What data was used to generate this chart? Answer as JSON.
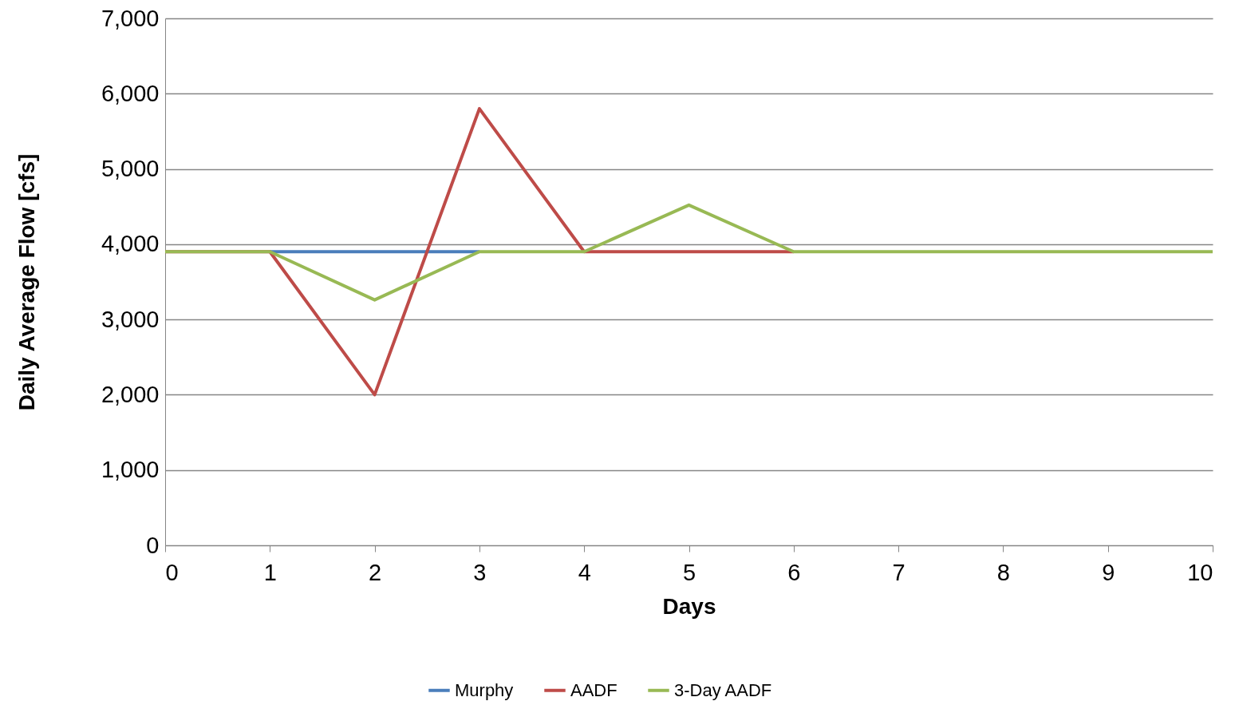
{
  "chart_data": {
    "type": "line",
    "xlabel": "Days",
    "ylabel": "Daily Average Flow [cfs]",
    "x": [
      0,
      1,
      2,
      3,
      4,
      5,
      6,
      7,
      8,
      9,
      10
    ],
    "series": [
      {
        "name": "Murphy",
        "color": "#4a7ebb",
        "values": [
          null,
          3900,
          3900,
          3900,
          null,
          null,
          null,
          null,
          null,
          null,
          null
        ]
      },
      {
        "name": "AADF",
        "color": "#be4b48",
        "values": [
          3900,
          3900,
          2000,
          5800,
          3900,
          3900,
          3900,
          null,
          null,
          null,
          null
        ]
      },
      {
        "name": "3-Day AADF",
        "color": "#98b954",
        "values": [
          3900,
          3900,
          3260,
          3900,
          3900,
          4520,
          3900,
          3900,
          3900,
          3900,
          3900
        ]
      }
    ],
    "xlim": [
      0,
      10
    ],
    "xticks": [
      0,
      1,
      2,
      3,
      4,
      5,
      6,
      7,
      8,
      9,
      10
    ],
    "ylim": [
      0,
      7000
    ],
    "yticks": [
      0,
      {
        "value": 1000,
        "label": "1,000"
      },
      {
        "value": 2000,
        "label": "2,000"
      },
      {
        "value": 3000,
        "label": "3,000"
      },
      {
        "value": 4000,
        "label": "4,000"
      },
      {
        "value": 5000,
        "label": "5,000"
      },
      {
        "value": 6000,
        "label": "6,000"
      },
      {
        "value": 7000,
        "label": "7,000"
      }
    ],
    "grid": "y",
    "legend": "bottom",
    "marker": "none",
    "line_style": "solid"
  }
}
